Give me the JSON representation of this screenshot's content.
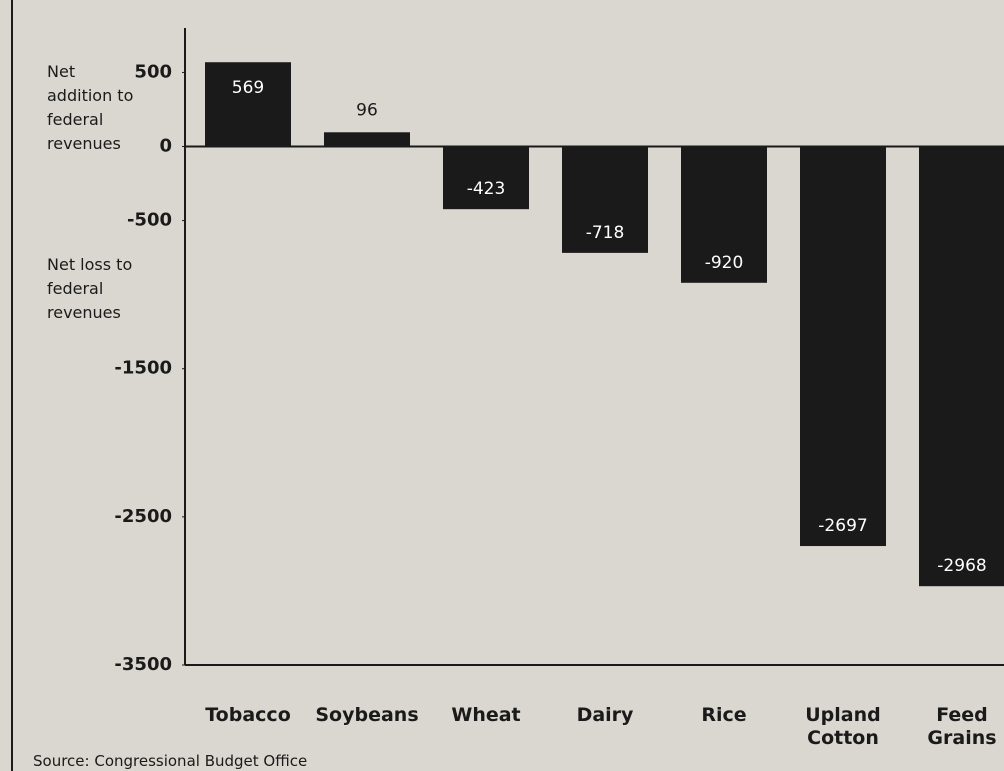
{
  "chart_data": {
    "type": "bar",
    "categories": [
      "Tobacco",
      "Soybeans",
      "Wheat",
      "Dairy",
      "Rice",
      "Upland Cotton",
      "Feed Grains"
    ],
    "values": [
      569,
      96,
      -423,
      -718,
      -920,
      -2697,
      -2968
    ],
    "color": "#1a1a1a",
    "ylim": [
      -3500,
      800
    ],
    "yticks": [
      500,
      0,
      -500,
      -1500,
      -2500,
      -3500
    ],
    "annotations": [
      "Net addition to federal revenues",
      "Net loss to federal revenues"
    ],
    "source": "Source: Congressional Budget Office"
  }
}
